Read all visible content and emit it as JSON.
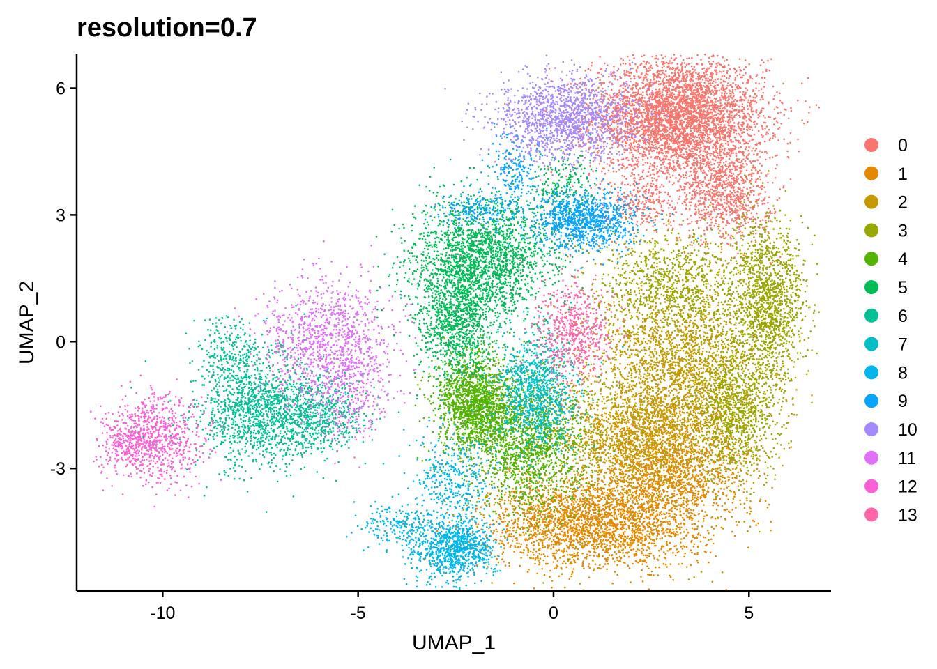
{
  "chart_data": {
    "type": "scatter",
    "title": "resolution=0.7",
    "xlabel": "UMAP_1",
    "ylabel": "UMAP_2",
    "xlim": [
      -12.2,
      7.1
    ],
    "ylim": [
      -5.9,
      6.8
    ],
    "xticks": [
      -10,
      -5,
      0,
      5
    ],
    "yticks": [
      -3,
      0,
      3,
      6
    ],
    "grid": false,
    "legend_position": "right",
    "series": [
      {
        "name": "0",
        "color": "#F8766D",
        "clusters": [
          [
            3.2,
            5.3,
            1.1,
            0.7,
            4200
          ],
          [
            4.4,
            3.5,
            0.6,
            0.6,
            900
          ],
          [
            2.2,
            3.3,
            0.5,
            0.3,
            250
          ]
        ]
      },
      {
        "name": "1",
        "color": "#E38900",
        "clusters": [
          [
            0.9,
            -4.3,
            1.3,
            0.55,
            2400
          ],
          [
            3.0,
            -3.1,
            1.0,
            0.8,
            1700
          ]
        ]
      },
      {
        "name": "2",
        "color": "#C49A00",
        "clusters": [
          [
            3.3,
            -0.6,
            1.1,
            1.0,
            2300
          ],
          [
            2.0,
            -2.3,
            1.0,
            0.7,
            1400
          ]
        ]
      },
      {
        "name": "3",
        "color": "#99A800",
        "clusters": [
          [
            5.5,
            1.0,
            0.45,
            0.9,
            1300
          ],
          [
            4.7,
            -1.6,
            0.55,
            0.8,
            1000
          ],
          [
            3.0,
            1.4,
            1.0,
            0.6,
            900
          ]
        ]
      },
      {
        "name": "4",
        "color": "#53B400",
        "clusters": [
          [
            -2.0,
            -1.5,
            0.5,
            0.6,
            1600
          ],
          [
            -0.6,
            -2.5,
            0.7,
            0.8,
            1400
          ]
        ]
      },
      {
        "name": "5",
        "color": "#00BC56",
        "clusters": [
          [
            -1.8,
            2.0,
            0.9,
            0.7,
            2000
          ],
          [
            -2.5,
            0.5,
            0.5,
            0.7,
            1000
          ],
          [
            0.3,
            3.7,
            0.4,
            0.4,
            200
          ]
        ]
      },
      {
        "name": "6",
        "color": "#00C094",
        "clusters": [
          [
            -7.5,
            -1.6,
            0.8,
            0.7,
            1400
          ],
          [
            -6.0,
            -1.8,
            0.6,
            0.4,
            500
          ],
          [
            -8.3,
            -0.3,
            0.4,
            0.4,
            200
          ]
        ]
      },
      {
        "name": "7",
        "color": "#00BFC4",
        "clusters": [
          [
            -0.4,
            -1.2,
            0.5,
            0.7,
            1000
          ]
        ]
      },
      {
        "name": "8",
        "color": "#00B6EB",
        "clusters": [
          [
            -2.5,
            -4.9,
            0.5,
            0.35,
            900
          ],
          [
            -4.0,
            -4.4,
            0.5,
            0.25,
            200
          ],
          [
            -2.6,
            -3.3,
            0.5,
            0.6,
            400
          ]
        ]
      },
      {
        "name": "9",
        "color": "#06A4FF",
        "clusters": [
          [
            0.8,
            2.9,
            0.7,
            0.35,
            1000
          ],
          [
            -1.0,
            4.0,
            0.35,
            0.4,
            200
          ],
          [
            -2.0,
            3.1,
            0.5,
            0.2,
            200
          ]
        ]
      },
      {
        "name": "10",
        "color": "#A58AFF",
        "clusters": [
          [
            0.3,
            5.3,
            0.9,
            0.5,
            1400
          ]
        ]
      },
      {
        "name": "11",
        "color": "#DF70F8",
        "clusters": [
          [
            -5.8,
            0.1,
            0.8,
            0.7,
            1000
          ],
          [
            -5.2,
            -1.2,
            0.5,
            0.6,
            300
          ]
        ]
      },
      {
        "name": "12",
        "color": "#FB61D7",
        "clusters": [
          [
            -10.2,
            -2.3,
            0.6,
            0.5,
            800
          ],
          [
            -11.0,
            -2.4,
            0.3,
            0.3,
            150
          ]
        ]
      },
      {
        "name": "13",
        "color": "#FF66A8",
        "clusters": [
          [
            0.5,
            0.2,
            0.5,
            0.6,
            600
          ]
        ]
      }
    ]
  }
}
